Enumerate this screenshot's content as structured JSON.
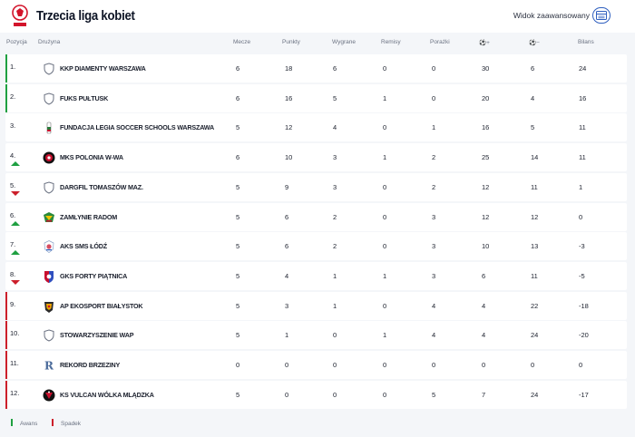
{
  "header": {
    "title": "Trzecia liga kobiet",
    "advanced_view_label": "Widok zaawansowany"
  },
  "colors": {
    "promotion": "#1fa041",
    "relegation": "#cc1f2b",
    "accent": "#2f5fbf"
  },
  "table": {
    "columns": [
      "Pozycja",
      "Drużyna",
      "Mecze",
      "Punkty",
      "Wygrane",
      "Remisy",
      "Porażki",
      "⚽+",
      "⚽−",
      "Bilans"
    ],
    "rows": [
      {
        "pos": "1.",
        "team": "KKP DIAMENTY WARSZAWA",
        "badge": "shield-icon",
        "mecze": "6",
        "punkty": "18",
        "wygrane": "6",
        "remisy": "0",
        "porazki": "0",
        "gplus": "30",
        "gminus": "6",
        "bilans": "24",
        "zone": "promotion",
        "trend": ""
      },
      {
        "pos": "2.",
        "team": "FUKS PUŁTUSK",
        "badge": "shield-icon",
        "mecze": "6",
        "punkty": "16",
        "wygrane": "5",
        "remisy": "1",
        "porazki": "0",
        "gplus": "20",
        "gminus": "4",
        "bilans": "16",
        "zone": "promotion",
        "trend": ""
      },
      {
        "pos": "3.",
        "team": "FUNDACJA LEGIA SOCCER SCHOOLS WARSZAWA",
        "badge": "legia-crest-icon",
        "mecze": "5",
        "punkty": "12",
        "wygrane": "4",
        "remisy": "0",
        "porazki": "1",
        "gplus": "16",
        "gminus": "5",
        "bilans": "11",
        "zone": "",
        "trend": ""
      },
      {
        "pos": "4.",
        "team": "MKS POLONIA W-WA",
        "badge": "polonia-crest-icon",
        "mecze": "6",
        "punkty": "10",
        "wygrane": "3",
        "remisy": "1",
        "porazki": "2",
        "gplus": "25",
        "gminus": "14",
        "bilans": "11",
        "zone": "",
        "trend": "up"
      },
      {
        "pos": "5.",
        "team": "DARGFIL TOMASZÓW MAZ.",
        "badge": "shield-icon",
        "mecze": "5",
        "punkty": "9",
        "wygrane": "3",
        "remisy": "0",
        "porazki": "2",
        "gplus": "12",
        "gminus": "11",
        "bilans": "1",
        "zone": "",
        "trend": "down"
      },
      {
        "pos": "6.",
        "team": "ZAMŁYNIE RADOM",
        "badge": "zamlynie-crest-icon",
        "mecze": "5",
        "punkty": "6",
        "wygrane": "2",
        "remisy": "0",
        "porazki": "3",
        "gplus": "12",
        "gminus": "12",
        "bilans": "0",
        "zone": "",
        "trend": "up"
      },
      {
        "pos": "7.",
        "team": "AKS SMS ŁÓDŹ",
        "badge": "aks-crest-icon",
        "mecze": "5",
        "punkty": "6",
        "wygrane": "2",
        "remisy": "0",
        "porazki": "3",
        "gplus": "10",
        "gminus": "13",
        "bilans": "-3",
        "zone": "",
        "trend": "up"
      },
      {
        "pos": "8.",
        "team": "GKS FORTY PIĄTNICA",
        "badge": "gks-crest-icon",
        "mecze": "5",
        "punkty": "4",
        "wygrane": "1",
        "remisy": "1",
        "porazki": "3",
        "gplus": "6",
        "gminus": "11",
        "bilans": "-5",
        "zone": "",
        "trend": "down"
      },
      {
        "pos": "9.",
        "team": "AP EKOSPORT BIAŁYSTOK",
        "badge": "ekosport-crest-icon",
        "mecze": "5",
        "punkty": "3",
        "wygrane": "1",
        "remisy": "0",
        "porazki": "4",
        "gplus": "4",
        "gminus": "22",
        "bilans": "-18",
        "zone": "relegation",
        "trend": ""
      },
      {
        "pos": "10.",
        "team": "STOWARZYSZENIE WAP",
        "badge": "shield-icon",
        "mecze": "5",
        "punkty": "1",
        "wygrane": "0",
        "remisy": "1",
        "porazki": "4",
        "gplus": "4",
        "gminus": "24",
        "bilans": "-20",
        "zone": "relegation",
        "trend": ""
      },
      {
        "pos": "11.",
        "team": "REKORD BRZEZINY",
        "badge": "rekord-crest-icon",
        "mecze": "0",
        "punkty": "0",
        "wygrane": "0",
        "remisy": "0",
        "porazki": "0",
        "gplus": "0",
        "gminus": "0",
        "bilans": "0",
        "zone": "relegation",
        "trend": ""
      },
      {
        "pos": "12.",
        "team": "KS VULCAN WÓLKA MLĄDZKA",
        "badge": "vulcan-crest-icon",
        "mecze": "5",
        "punkty": "0",
        "wygrane": "0",
        "remisy": "0",
        "porazki": "5",
        "gplus": "7",
        "gminus": "24",
        "bilans": "-17",
        "zone": "relegation",
        "trend": ""
      }
    ]
  },
  "legend": {
    "promotion": "Awans",
    "relegation": "Spadek"
  }
}
